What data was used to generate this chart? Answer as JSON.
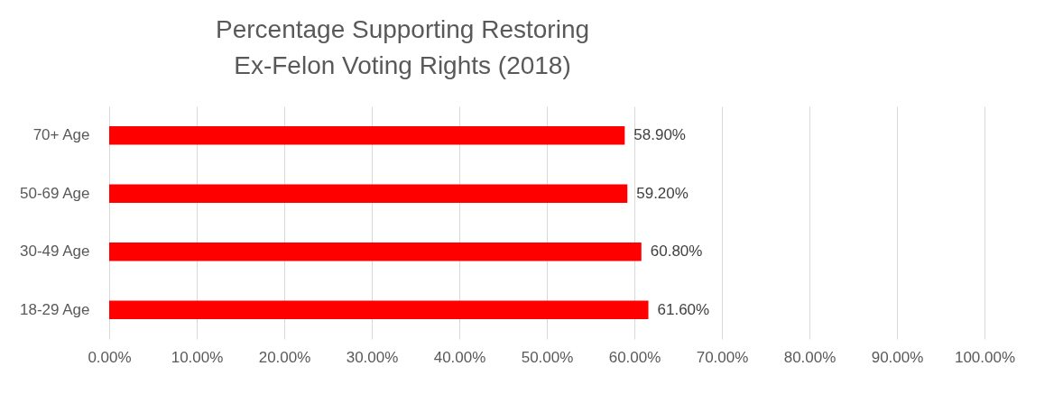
{
  "chart_data": {
    "type": "bar",
    "orientation": "horizontal",
    "title": [
      "Percentage Supporting Restoring",
      "Ex-Felon Voting Rights (2018)"
    ],
    "categories": [
      "70+ Age",
      "50-69 Age",
      "30-49 Age",
      "18-29 Age"
    ],
    "values": [
      58.9,
      59.2,
      60.8,
      61.6
    ],
    "value_labels": [
      "58.90%",
      "59.20%",
      "60.80%",
      "61.60%"
    ],
    "color": "#ff0000",
    "xlim": [
      0,
      100
    ],
    "xticks": [
      {
        "value": 0,
        "label": "0.00%"
      },
      {
        "value": 10,
        "label": "10.00%"
      },
      {
        "value": 20,
        "label": "20.00%"
      },
      {
        "value": 30,
        "label": "30.00%"
      },
      {
        "value": 40,
        "label": "40.00%"
      },
      {
        "value": 50,
        "label": "50.00%"
      },
      {
        "value": 60,
        "label": "60.00%"
      },
      {
        "value": 70,
        "label": "70.00%"
      },
      {
        "value": 80,
        "label": "80.00%"
      },
      {
        "value": 90,
        "label": "90.00%"
      },
      {
        "value": 100,
        "label": "100.00%"
      }
    ],
    "grid": "x"
  }
}
